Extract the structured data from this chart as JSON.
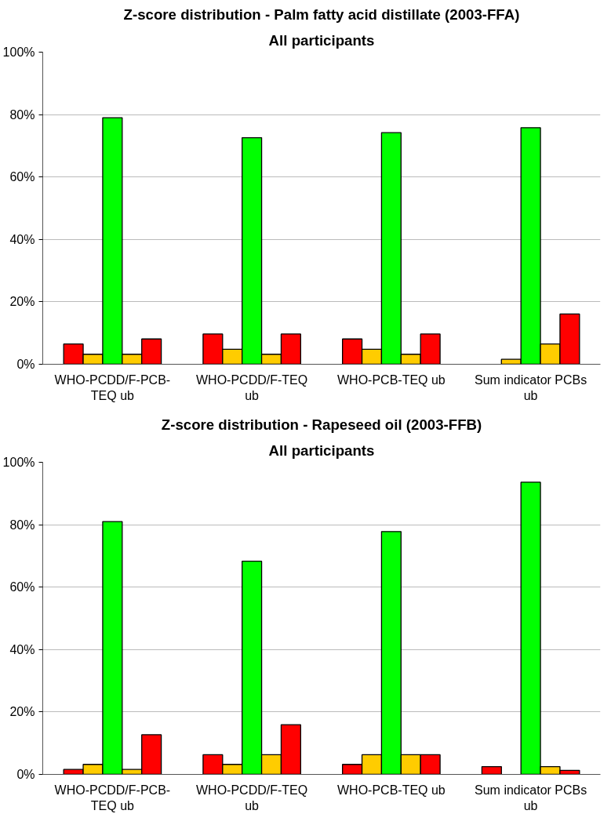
{
  "chart_data": [
    {
      "type": "bar",
      "title": "Z-score distribution - Palm fatty acid distillate (2003-FFA)",
      "subtitle": "All participants",
      "categories": [
        "WHO-PCDD/F-PCB-\nTEQ ub",
        "WHO-PCDD/F-TEQ\nub",
        "WHO-PCB-TEQ ub",
        "Sum indicator PCBs\nub"
      ],
      "series": [
        {
          "color": "#ff0000",
          "values": [
            6.5,
            9.7,
            8.1,
            null
          ]
        },
        {
          "color": "#ffcc00",
          "values": [
            3.2,
            4.8,
            4.8,
            1.6
          ]
        },
        {
          "color": "#00ff00",
          "values": [
            79.0,
            72.6,
            74.2,
            75.8
          ]
        },
        {
          "color": "#ffcc00",
          "values": [
            3.2,
            3.2,
            3.2,
            6.5
          ]
        },
        {
          "color": "#ff0000",
          "values": [
            8.1,
            9.7,
            9.7,
            16.1
          ]
        }
      ],
      "ylim": [
        0,
        100
      ],
      "yticks": [
        {
          "value": 0,
          "label": "0%"
        },
        {
          "value": 20,
          "label": "20%"
        },
        {
          "value": 40,
          "label": "40%"
        },
        {
          "value": 60,
          "label": "60%"
        },
        {
          "value": 80,
          "label": "80%"
        },
        {
          "value": 100,
          "label": "100%"
        }
      ],
      "grid": "y"
    },
    {
      "type": "bar",
      "title": "Z-score distribution - Rapeseed oil (2003-FFB)",
      "subtitle": "All participants",
      "categories": [
        "WHO-PCDD/F-PCB-\nTEQ ub",
        "WHO-PCDD/F-TEQ\nub",
        "WHO-PCB-TEQ ub",
        "Sum indicator PCBs\nub"
      ],
      "series": [
        {
          "color": "#ff0000",
          "values": [
            1.6,
            6.3,
            3.2,
            2.5
          ]
        },
        {
          "color": "#ffcc00",
          "values": [
            3.2,
            3.2,
            6.3,
            null
          ]
        },
        {
          "color": "#00ff00",
          "values": [
            81.0,
            68.3,
            77.8,
            93.6
          ]
        },
        {
          "color": "#ffcc00",
          "values": [
            1.6,
            6.3,
            6.3,
            2.5
          ]
        },
        {
          "color": "#ff0000",
          "values": [
            12.7,
            15.9,
            6.3,
            1.3
          ]
        }
      ],
      "ylim": [
        0,
        100
      ],
      "yticks": [
        {
          "value": 0,
          "label": "0%"
        },
        {
          "value": 20,
          "label": "20%"
        },
        {
          "value": 40,
          "label": "40%"
        },
        {
          "value": 60,
          "label": "60%"
        },
        {
          "value": 80,
          "label": "80%"
        },
        {
          "value": 100,
          "label": "100%"
        }
      ],
      "grid": "y"
    }
  ]
}
